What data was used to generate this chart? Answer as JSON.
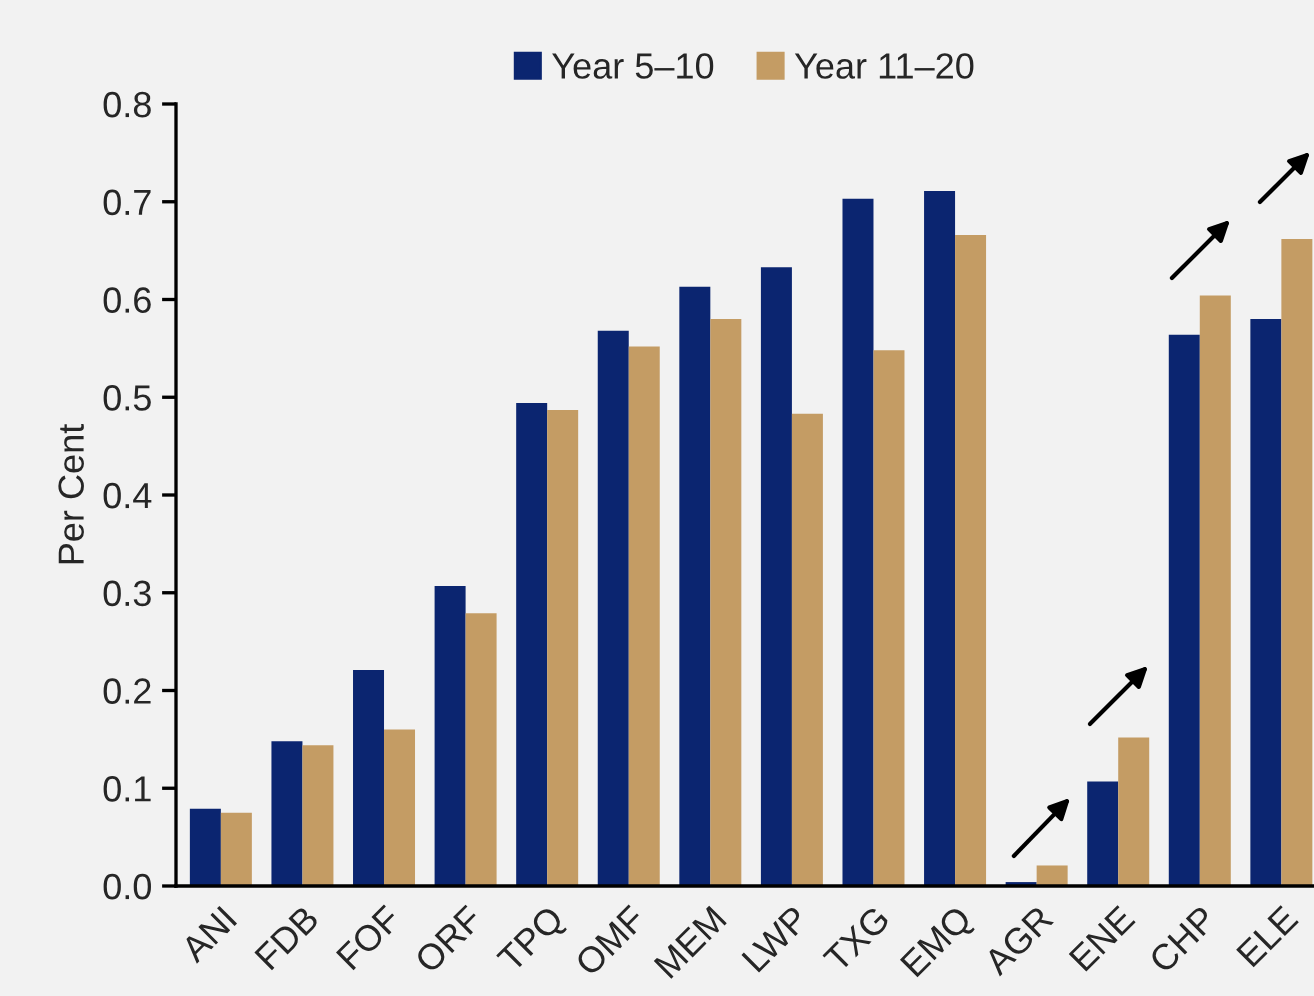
{
  "chart_data": {
    "type": "bar",
    "ylabel": "Per Cent",
    "categories": [
      "ANI",
      "FDB",
      "FOF",
      "ORF",
      "TPQ",
      "OMF",
      "MEM",
      "LWP",
      "TXG",
      "EMQ",
      "AGR",
      "ENE",
      "CHP",
      "ELE"
    ],
    "series": [
      {
        "name": "Year 5–10",
        "color": "#0b2570",
        "values": [
          0.079,
          0.148,
          0.221,
          0.307,
          0.494,
          0.568,
          0.613,
          0.633,
          0.703,
          0.711,
          0.004,
          0.107,
          0.564,
          0.58
        ]
      },
      {
        "name": "Year 11–20",
        "color": "#c49c64",
        "values": [
          0.075,
          0.144,
          0.16,
          0.279,
          0.487,
          0.552,
          0.58,
          0.483,
          0.548,
          0.666,
          0.021,
          0.152,
          0.604,
          0.662
        ]
      }
    ],
    "ylim": [
      0,
      0.8
    ],
    "yticks": [
      {
        "value": 0,
        "label": "0.0"
      },
      0.1,
      0.2,
      0.3,
      0.4,
      0.5,
      0.6,
      0.7,
      0.8
    ],
    "legend": "top",
    "grid": false
  }
}
